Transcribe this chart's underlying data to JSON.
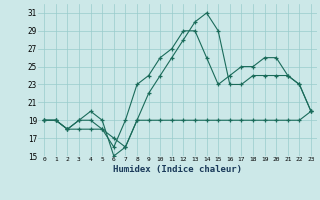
{
  "title": "",
  "xlabel": "Humidex (Indice chaleur)",
  "bg_color": "#cce8e8",
  "grid_color": "#99cccc",
  "line_color": "#1a6b5a",
  "xlim": [
    -0.5,
    23.5
  ],
  "ylim": [
    15,
    32
  ],
  "xticks": [
    0,
    1,
    2,
    3,
    4,
    5,
    6,
    7,
    8,
    9,
    10,
    11,
    12,
    13,
    14,
    15,
    16,
    17,
    18,
    19,
    20,
    21,
    22,
    23
  ],
  "yticks": [
    15,
    17,
    19,
    21,
    23,
    25,
    27,
    29,
    31
  ],
  "lines": [
    {
      "x": [
        0,
        1,
        2,
        3,
        4,
        5,
        6,
        7,
        8,
        9,
        10,
        11,
        12,
        13,
        14,
        15,
        16,
        17,
        18,
        19,
        20,
        21,
        22,
        23
      ],
      "y": [
        19,
        19,
        18,
        19,
        19,
        18,
        17,
        16,
        19,
        19,
        19,
        19,
        19,
        19,
        19,
        19,
        19,
        19,
        19,
        19,
        19,
        19,
        19,
        20
      ]
    },
    {
      "x": [
        0,
        1,
        2,
        3,
        4,
        5,
        6,
        7,
        8,
        9,
        10,
        11,
        12,
        13,
        14,
        15,
        16,
        17,
        18,
        19,
        20,
        21,
        22,
        23
      ],
      "y": [
        19,
        19,
        18,
        19,
        20,
        19,
        15,
        16,
        19,
        22,
        24,
        26,
        28,
        30,
        31,
        29,
        23,
        23,
        24,
        24,
        24,
        24,
        23,
        20
      ]
    },
    {
      "x": [
        0,
        1,
        2,
        3,
        4,
        5,
        6,
        7,
        8,
        9,
        10,
        11,
        12,
        13,
        14,
        15,
        16,
        17,
        18,
        19,
        20,
        21,
        22,
        23
      ],
      "y": [
        19,
        19,
        18,
        18,
        18,
        18,
        16,
        19,
        23,
        24,
        26,
        27,
        29,
        29,
        26,
        23,
        24,
        25,
        25,
        26,
        26,
        24,
        23,
        20
      ]
    }
  ]
}
